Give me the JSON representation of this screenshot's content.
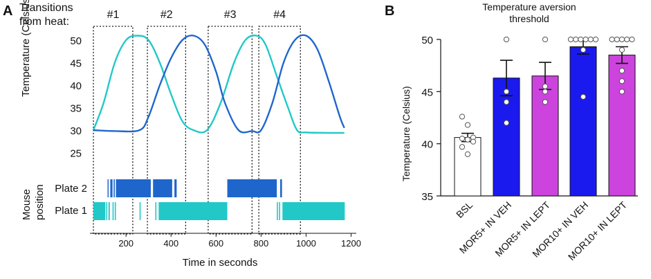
{
  "panel_a": {
    "letter": "A",
    "transitions_label_1": "Transitions",
    "transitions_label_2": "from heat:",
    "window_labels": [
      "#1",
      "#2",
      "#3",
      "#4"
    ],
    "ylabel": "Temperature (Celsius)",
    "yticks": [
      "50",
      "45",
      "40",
      "35",
      "30",
      "25"
    ],
    "xlabel": "Time in seconds",
    "xticks": [
      "200",
      "400",
      "600",
      "800",
      "1000",
      "1200"
    ],
    "mouse_label_1": "Mouse",
    "mouse_label_2": "position",
    "plate2_label": "Plate 2",
    "plate1_label": "Plate 1"
  },
  "panel_b": {
    "letter": "B",
    "title_line1": "Temperature aversion",
    "title_line2": "threshold",
    "ylabel": "Temperature (Celsius)",
    "yticks": [
      "50",
      "45",
      "40",
      "35"
    ]
  },
  "colors": {
    "cyan": "#22c8c8",
    "blue": "#1f66cc",
    "bsl": "#ffffff",
    "mor_veh": "#1a1aee",
    "mor_lept": "#cc44dd"
  },
  "chart_data": [
    {
      "type": "line",
      "title": "Transitions from heat",
      "xlabel": "Time in seconds",
      "ylabel": "Temperature (Celsius)",
      "xlim": [
        50,
        1200
      ],
      "ylim": [
        25,
        52
      ],
      "series": [
        {
          "name": "Plate 1 (cyan)",
          "color": "#22c8c8",
          "x": [
            55,
            100,
            150,
            200,
            250,
            300,
            350,
            400,
            450,
            500,
            560,
            620,
            680,
            730,
            780,
            820,
            870,
            920,
            960,
            1000,
            1100,
            1170
          ],
          "y": [
            30,
            36,
            45,
            50,
            51,
            50,
            45,
            38,
            32,
            30,
            30,
            36,
            45,
            50,
            51,
            49,
            42,
            35,
            30,
            29.5,
            29.4,
            29.4
          ]
        },
        {
          "name": "Plate 2 (blue)",
          "color": "#1f66cc",
          "x": [
            55,
            150,
            260,
            300,
            350,
            400,
            450,
            500,
            550,
            600,
            640,
            700,
            760,
            800,
            850,
            900,
            950,
            1000,
            1050,
            1100,
            1150,
            1170
          ],
          "y": [
            30,
            29.8,
            30,
            33,
            40,
            46,
            50,
            51,
            49,
            43,
            36,
            30,
            29.8,
            30,
            36,
            45,
            50,
            51,
            48,
            41,
            33,
            30.5
          ]
        }
      ],
      "windows": [
        {
          "label": "#1",
          "x": [
            55,
            230
          ]
        },
        {
          "label": "#2",
          "x": [
            295,
            465
          ]
        },
        {
          "label": "#3",
          "x": [
            565,
            760
          ]
        },
        {
          "label": "#4",
          "x": [
            790,
            975
          ]
        }
      ],
      "mouse_position": {
        "plate2": [
          [
            118,
            122
          ],
          [
            130,
            140
          ],
          [
            145,
            150
          ],
          [
            155,
            310
          ],
          [
            320,
            405
          ],
          [
            415,
            425
          ],
          [
            650,
            870
          ],
          [
            885,
            893
          ]
        ],
        "plate1": [
          [
            55,
            108
          ],
          [
            112,
            115
          ],
          [
            122,
            128
          ],
          [
            140,
            145
          ],
          [
            150,
            155
          ],
          [
            260,
            265
          ],
          [
            330,
            335
          ],
          [
            345,
            650
          ],
          [
            870,
            875
          ],
          [
            880,
            885
          ],
          [
            895,
            1172
          ]
        ]
      }
    },
    {
      "type": "bar",
      "title": "Temperature aversion threshold",
      "ylabel": "Temperature (Celsius)",
      "ylim": [
        35,
        50
      ],
      "categories": [
        "BSL",
        "MOR5+ IN VEH",
        "MOR5+ IN LEPT",
        "MOR10+ IN VEH",
        "MOR10+ IN LEPT"
      ],
      "values": [
        40.6,
        46.3,
        46.5,
        49.3,
        48.5
      ],
      "errors": [
        0.4,
        1.7,
        1.3,
        0.7,
        0.8
      ],
      "bar_colors": [
        "#ffffff",
        "#1a1aee",
        "#cc44dd",
        "#1a1aee",
        "#cc44dd"
      ],
      "points": [
        [
          42.6,
          41.8,
          40.6,
          40.5,
          40.4,
          40.2,
          39.7,
          39.0
        ],
        [
          50,
          45,
          44,
          42
        ],
        [
          50,
          45.5,
          45,
          44
        ],
        [
          50,
          50,
          50,
          50,
          50,
          50,
          49,
          44.5
        ],
        [
          50,
          50,
          50,
          50,
          50,
          49,
          47,
          46,
          45
        ]
      ]
    }
  ]
}
